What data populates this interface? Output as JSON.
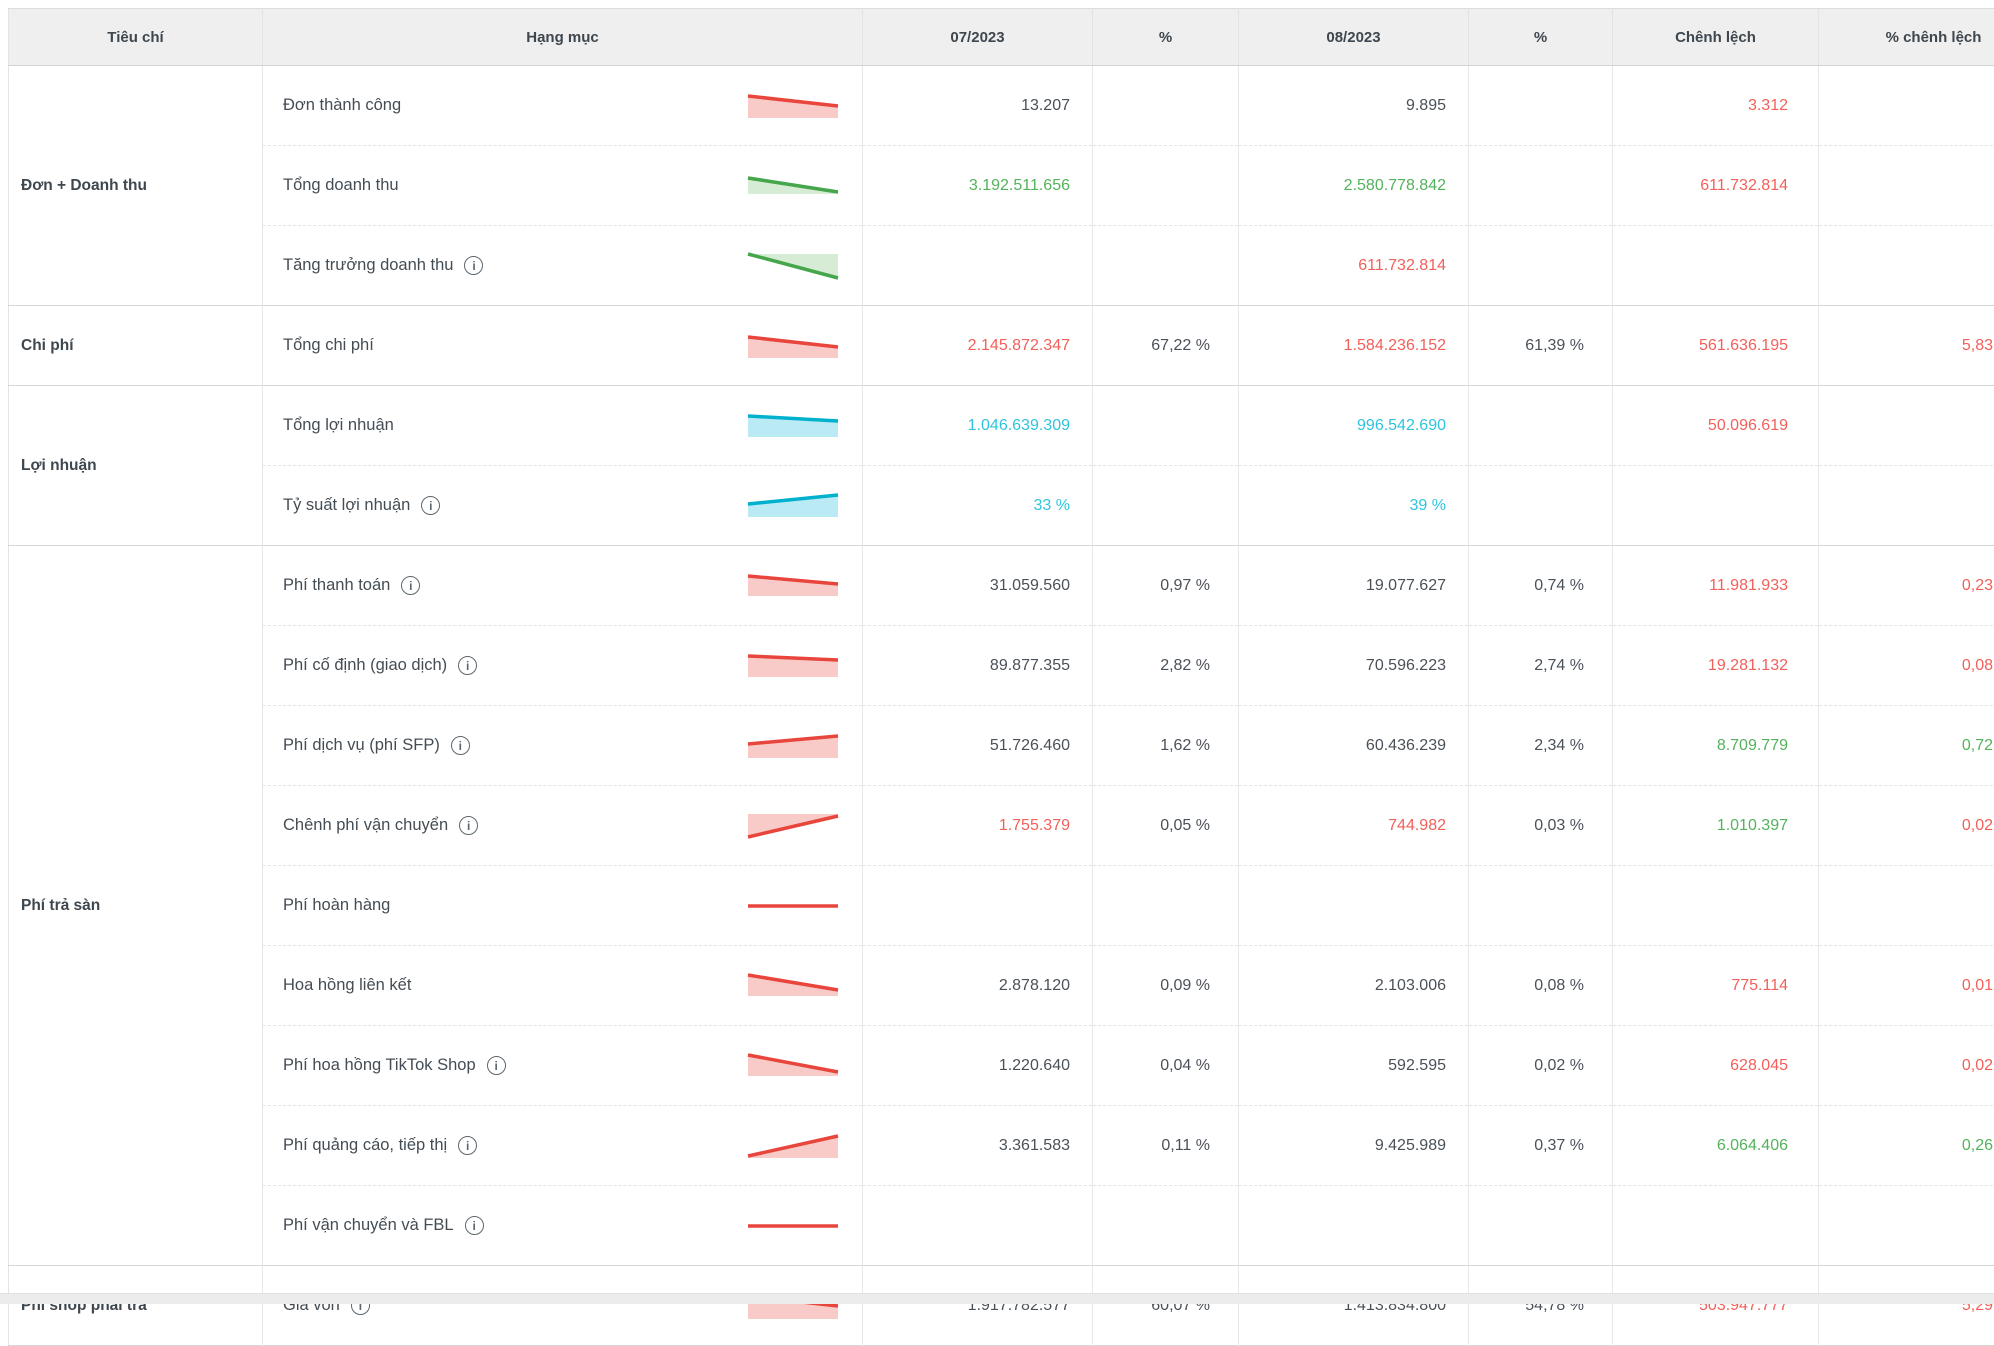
{
  "table": {
    "columns": [
      {
        "key": "group",
        "label": "Tiêu chí"
      },
      {
        "key": "category",
        "label": "Hạng mục"
      },
      {
        "key": "v1",
        "label": "07/2023"
      },
      {
        "key": "p1",
        "label": "%"
      },
      {
        "key": "v2",
        "label": "08/2023"
      },
      {
        "key": "p2",
        "label": "%"
      },
      {
        "key": "d",
        "label": "Chênh lệch"
      },
      {
        "key": "pd",
        "label": "% chênh lệch"
      }
    ],
    "groups": [
      {
        "label": "Đơn + Doanh thu",
        "span": 3
      },
      {
        "label": "Chi phí",
        "span": 1
      },
      {
        "label": "Lợi nhuận",
        "span": 2
      },
      {
        "label": "Phí trả sàn",
        "span": 9
      },
      {
        "label": "Phí shop phải trả",
        "span": 1
      }
    ],
    "rows": [
      {
        "label": "Đơn thành công",
        "info": false,
        "spark": {
          "color": "red",
          "mode": "below",
          "p": [
            [
              1,
              5
            ],
            [
              91,
              15
            ]
          ],
          "base": 27
        },
        "cells": {
          "v1": {
            "t": "13.207",
            "c": "dark"
          },
          "p1": null,
          "v2": {
            "t": "9.895",
            "c": "dark"
          },
          "p2": null,
          "d": {
            "t": "3.312",
            "c": "red"
          },
          "pd": null
        }
      },
      {
        "label": "Tổng doanh thu",
        "info": false,
        "spark": {
          "color": "green",
          "mode": "below",
          "p": [
            [
              1,
              7
            ],
            [
              91,
              21
            ]
          ],
          "base": 23
        },
        "cells": {
          "v1": {
            "t": "3.192.511.656",
            "c": "green"
          },
          "p1": null,
          "v2": {
            "t": "2.580.778.842",
            "c": "green"
          },
          "p2": null,
          "d": {
            "t": "611.732.814",
            "c": "red"
          },
          "pd": null
        }
      },
      {
        "label": "Tăng trưởng doanh thu",
        "info": true,
        "spark": {
          "color": "green",
          "mode": "above",
          "p": [
            [
              1,
              3
            ],
            [
              91,
              27
            ]
          ]
        },
        "cells": {
          "v1": null,
          "p1": null,
          "v2": {
            "t": "611.732.814",
            "c": "red"
          },
          "p2": null,
          "d": null,
          "pd": null
        }
      },
      {
        "label": "Tổng chi phí",
        "info": false,
        "spark": {
          "color": "red",
          "mode": "below",
          "p": [
            [
              1,
              6
            ],
            [
              91,
              16
            ]
          ],
          "base": 27
        },
        "cells": {
          "v1": {
            "t": "2.145.872.347",
            "c": "red"
          },
          "p1": {
            "t": "67,22 %",
            "c": "dark"
          },
          "v2": {
            "t": "1.584.236.152",
            "c": "red"
          },
          "p2": {
            "t": "61,39 %",
            "c": "dark"
          },
          "d": {
            "t": "561.636.195",
            "c": "red"
          },
          "pd": {
            "t": "5,83",
            "c": "red"
          }
        }
      },
      {
        "label": "Tổng lợi nhuận",
        "info": false,
        "spark": {
          "color": "cyan",
          "mode": "below",
          "p": [
            [
              1,
              5
            ],
            [
              91,
              10
            ]
          ],
          "base": 26
        },
        "cells": {
          "v1": {
            "t": "1.046.639.309",
            "c": "cyan"
          },
          "p1": null,
          "v2": {
            "t": "996.542.690",
            "c": "cyan"
          },
          "p2": null,
          "d": {
            "t": "50.096.619",
            "c": "red"
          },
          "pd": null
        }
      },
      {
        "label": "Tỷ suất lợi nhuận",
        "info": true,
        "spark": {
          "color": "cyan",
          "mode": "below",
          "p": [
            [
              1,
              13
            ],
            [
              91,
              4
            ]
          ],
          "base": 26
        },
        "cells": {
          "v1": {
            "t": "33 %",
            "c": "cyan"
          },
          "p1": null,
          "v2": {
            "t": "39 %",
            "c": "cyan"
          },
          "p2": null,
          "d": null,
          "pd": null
        }
      },
      {
        "label": "Phí thanh toán",
        "info": true,
        "spark": {
          "color": "red",
          "mode": "below",
          "p": [
            [
              1,
              5
            ],
            [
              91,
              13
            ]
          ],
          "base": 25
        },
        "cells": {
          "v1": {
            "t": "31.059.560",
            "c": "dark"
          },
          "p1": {
            "t": "0,97 %",
            "c": "dark"
          },
          "v2": {
            "t": "19.077.627",
            "c": "dark"
          },
          "p2": {
            "t": "0,74 %",
            "c": "dark"
          },
          "d": {
            "t": "11.981.933",
            "c": "red"
          },
          "pd": {
            "t": "0,23",
            "c": "red"
          }
        }
      },
      {
        "label": "Phí cố định (giao dịch)",
        "info": true,
        "spark": {
          "color": "red",
          "mode": "below",
          "p": [
            [
              1,
              5
            ],
            [
              91,
              9
            ]
          ],
          "base": 26
        },
        "cells": {
          "v1": {
            "t": "89.877.355",
            "c": "dark"
          },
          "p1": {
            "t": "2,82 %",
            "c": "dark"
          },
          "v2": {
            "t": "70.596.223",
            "c": "dark"
          },
          "p2": {
            "t": "2,74 %",
            "c": "dark"
          },
          "d": {
            "t": "19.281.132",
            "c": "red"
          },
          "pd": {
            "t": "0,08",
            "c": "red"
          }
        }
      },
      {
        "label": "Phí dịch vụ (phí SFP)",
        "info": true,
        "spark": {
          "color": "red",
          "mode": "below",
          "p": [
            [
              1,
              13
            ],
            [
              91,
              5
            ]
          ],
          "base": 27
        },
        "cells": {
          "v1": {
            "t": "51.726.460",
            "c": "dark"
          },
          "p1": {
            "t": "1,62 %",
            "c": "dark"
          },
          "v2": {
            "t": "60.436.239",
            "c": "dark"
          },
          "p2": {
            "t": "2,34 %",
            "c": "dark"
          },
          "d": {
            "t": "8.709.779",
            "c": "green"
          },
          "pd": {
            "t": "0,72",
            "c": "green"
          }
        }
      },
      {
        "label": "Chênh phí vận chuyển",
        "info": true,
        "spark": {
          "color": "red",
          "mode": "above",
          "p": [
            [
              1,
              26
            ],
            [
              91,
              5
            ]
          ]
        },
        "cells": {
          "v1": {
            "t": "1.755.379",
            "c": "red"
          },
          "p1": {
            "t": "0,05 %",
            "c": "dark"
          },
          "v2": {
            "t": "744.982",
            "c": "red"
          },
          "p2": {
            "t": "0,03 %",
            "c": "dark"
          },
          "d": {
            "t": "1.010.397",
            "c": "green"
          },
          "pd": {
            "t": "0,02",
            "c": "red"
          }
        }
      },
      {
        "label": "Phí hoàn hàng",
        "info": false,
        "spark": {
          "color": "red",
          "mode": "none",
          "p": [
            [
              1,
              15
            ],
            [
              91,
              15
            ]
          ]
        },
        "cells": {
          "v1": null,
          "p1": null,
          "v2": null,
          "p2": null,
          "d": null,
          "pd": null
        }
      },
      {
        "label": "Hoa hồng liên kết",
        "info": false,
        "spark": {
          "color": "red",
          "mode": "below",
          "p": [
            [
              1,
              4
            ],
            [
              91,
              19
            ]
          ],
          "base": 25
        },
        "cells": {
          "v1": {
            "t": "2.878.120",
            "c": "dark"
          },
          "p1": {
            "t": "0,09 %",
            "c": "dark"
          },
          "v2": {
            "t": "2.103.006",
            "c": "dark"
          },
          "p2": {
            "t": "0,08 %",
            "c": "dark"
          },
          "d": {
            "t": "775.114",
            "c": "red"
          },
          "pd": {
            "t": "0,01",
            "c": "red"
          }
        }
      },
      {
        "label": "Phí hoa hồng TikTok Shop",
        "info": true,
        "spark": {
          "color": "red",
          "mode": "below",
          "p": [
            [
              1,
              4
            ],
            [
              91,
              21
            ]
          ],
          "base": 25
        },
        "cells": {
          "v1": {
            "t": "1.220.640",
            "c": "dark"
          },
          "p1": {
            "t": "0,04 %",
            "c": "dark"
          },
          "v2": {
            "t": "592.595",
            "c": "dark"
          },
          "p2": {
            "t": "0,02 %",
            "c": "dark"
          },
          "d": {
            "t": "628.045",
            "c": "red"
          },
          "pd": {
            "t": "0,02",
            "c": "red"
          }
        }
      },
      {
        "label": "Phí quảng cáo, tiếp thị",
        "info": true,
        "spark": {
          "color": "red",
          "mode": "below",
          "p": [
            [
              1,
              25
            ],
            [
              91,
              5
            ]
          ],
          "base": 27
        },
        "cells": {
          "v1": {
            "t": "3.361.583",
            "c": "dark"
          },
          "p1": {
            "t": "0,11 %",
            "c": "dark"
          },
          "v2": {
            "t": "9.425.989",
            "c": "dark"
          },
          "p2": {
            "t": "0,37 %",
            "c": "dark"
          },
          "d": {
            "t": "6.064.406",
            "c": "green"
          },
          "pd": {
            "t": "0,26",
            "c": "green"
          }
        }
      },
      {
        "label": "Phí vận chuyển và FBL",
        "info": true,
        "spark": {
          "color": "red",
          "mode": "none",
          "p": [
            [
              1,
              15
            ],
            [
              91,
              15
            ]
          ]
        },
        "cells": {
          "v1": null,
          "p1": null,
          "v2": null,
          "p2": null,
          "d": null,
          "pd": null
        }
      },
      {
        "label": "Giá vốn",
        "info": true,
        "spark": {
          "color": "red",
          "mode": "below",
          "p": [
            [
              1,
              5
            ],
            [
              91,
              15
            ]
          ],
          "base": 28
        },
        "cells": {
          "v1": {
            "t": "1.917.782.577",
            "c": "dark"
          },
          "p1": {
            "t": "60,07 %",
            "c": "dark"
          },
          "v2": {
            "t": "1.413.834.800",
            "c": "dark"
          },
          "p2": {
            "t": "54,78 %",
            "c": "dark"
          },
          "d": {
            "t": "503.947.777",
            "c": "red"
          },
          "pd": {
            "t": "5,29",
            "c": "red"
          }
        }
      }
    ]
  },
  "colors": {
    "header_bg": "#efefef",
    "spark": {
      "red": {
        "line": "#e8453c",
        "fill": "#f9cbc8"
      },
      "green": {
        "line": "#46a64b",
        "fill": "#d6ecd5"
      },
      "cyan": {
        "line": "#00b1ce",
        "fill": "#baeaf4"
      }
    },
    "text": {
      "dark": "#4a5158",
      "red": "#f2605a",
      "green": "#54b25b",
      "cyan": "#2ec4dc"
    }
  },
  "icons": {
    "info": "i"
  }
}
